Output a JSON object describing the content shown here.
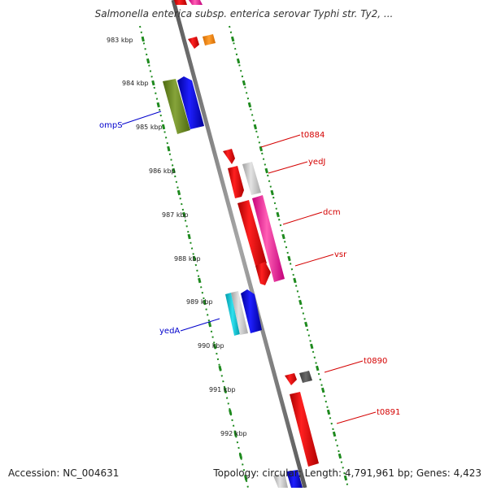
{
  "header": {
    "title": "Salmonella enterica subsp. enterica serovar Typhi str. Ty2, ..."
  },
  "footer": {
    "accession": "Accession: NC_004631",
    "summary": "Topology: circular; Length: 4,791,961 bp; Genes: 4,423"
  },
  "colors": {
    "backbone": "#888888",
    "ticks": "#1e8a1e",
    "label_red": "#d40000",
    "label_blue": "#0000cc"
  },
  "ruler": {
    "ticks": [
      {
        "label": "983 kbp"
      },
      {
        "label": "984 kbp"
      },
      {
        "label": "985 kbp"
      },
      {
        "label": "986 kbp"
      },
      {
        "label": "987 kbp"
      },
      {
        "label": "988 kbp"
      },
      {
        "label": "989 kbp"
      },
      {
        "label": "990 kbp"
      },
      {
        "label": "991 kbp"
      },
      {
        "label": "992 kbp"
      }
    ]
  },
  "genes": [
    {
      "name": "t0884",
      "strand": "forward",
      "color": "red"
    },
    {
      "name": "yedJ",
      "strand": "forward",
      "color": "red"
    },
    {
      "name": "dcm",
      "strand": "forward",
      "color": "pink"
    },
    {
      "name": "vsr",
      "strand": "forward",
      "color": "red"
    },
    {
      "name": "ompS",
      "strand": "reverse",
      "color": "blue"
    },
    {
      "name": "yedA",
      "strand": "reverse",
      "color": "blue"
    },
    {
      "name": "t0890",
      "strand": "forward",
      "color": "red"
    },
    {
      "name": "t0891",
      "strand": "forward",
      "color": "red"
    }
  ]
}
